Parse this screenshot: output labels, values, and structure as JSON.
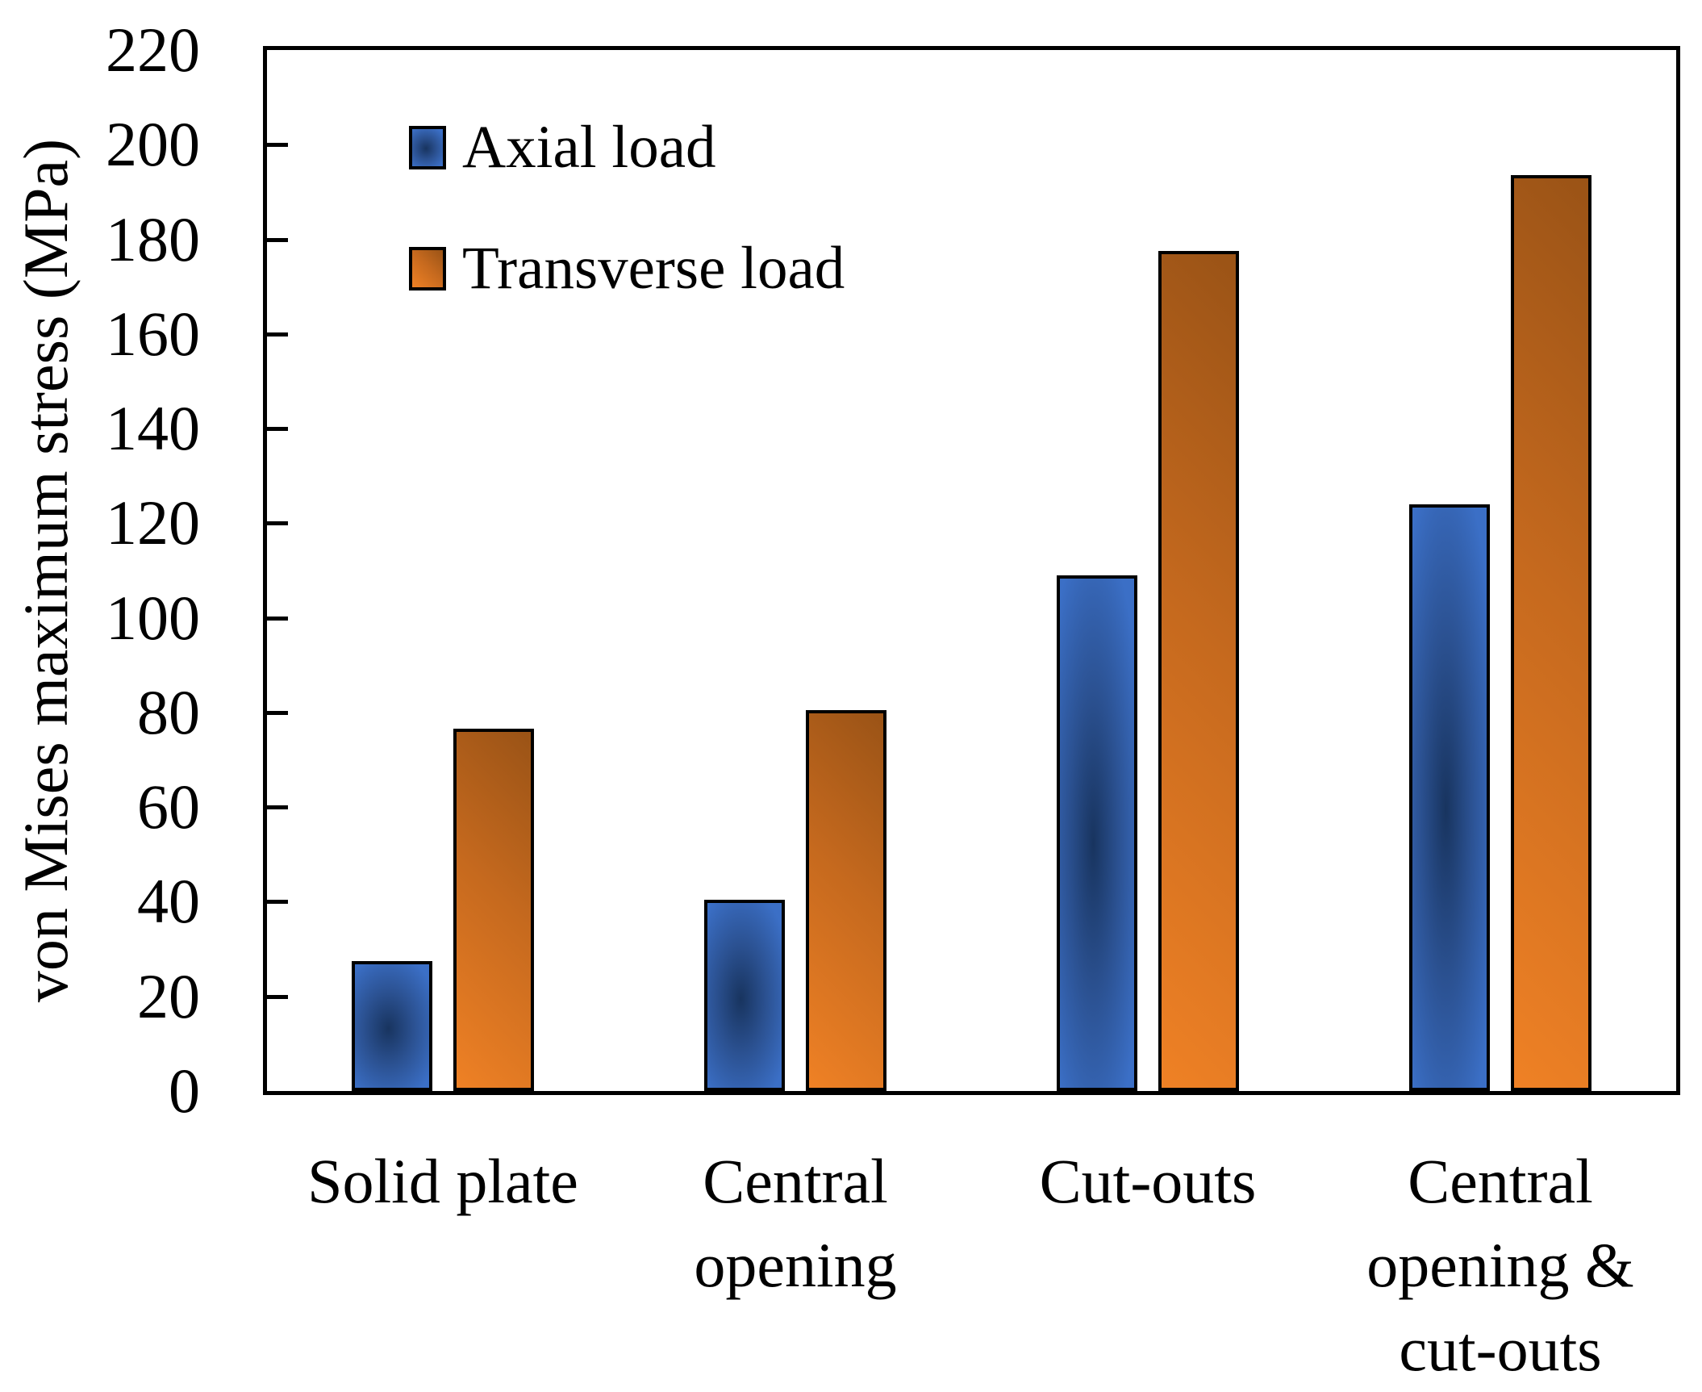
{
  "figure": {
    "background": "#ffffff"
  },
  "y_axis": {
    "title": "von Mises maximum stress (MPa)",
    "min": 0,
    "max": 220,
    "step": 20,
    "tick_labels": [
      "0",
      "20",
      "40",
      "60",
      "80",
      "100",
      "120",
      "140",
      "160",
      "180",
      "200",
      "220"
    ]
  },
  "x_axis": {
    "category_label_lines": [
      [
        "Solid plate"
      ],
      [
        "Central",
        "opening"
      ],
      [
        "Cut-outs"
      ],
      [
        "Central",
        "opening &",
        "cut-outs"
      ]
    ]
  },
  "legend": {
    "items": [
      {
        "label": "Axial load"
      },
      {
        "label": "Transverse load"
      }
    ]
  },
  "chart_data": {
    "type": "bar",
    "title": "",
    "xlabel": "",
    "ylabel": "von Mises maximum stress (MPa)",
    "ylim": [
      0,
      220
    ],
    "ytick_step": 20,
    "grid": false,
    "legend_position": "upper-left-inside",
    "categories": [
      "Solid plate",
      "Central opening",
      "Cut-outs",
      "Central opening & cut-outs"
    ],
    "series": [
      {
        "name": "Axial load",
        "values": [
          27.5,
          40.5,
          109,
          124
        ],
        "fill_style": "radial",
        "fill_stops": [
          "#18345F",
          "#2B5191",
          "#3B6FC6"
        ],
        "border_color": "#000000"
      },
      {
        "name": "Transverse load",
        "values": [
          76.5,
          80.5,
          177.5,
          193.5
        ],
        "fill_style": "diagonal",
        "fill_stops": [
          "#EF8125",
          "#C5691E",
          "#9A5316"
        ],
        "border_color": "#000000"
      }
    ]
  }
}
